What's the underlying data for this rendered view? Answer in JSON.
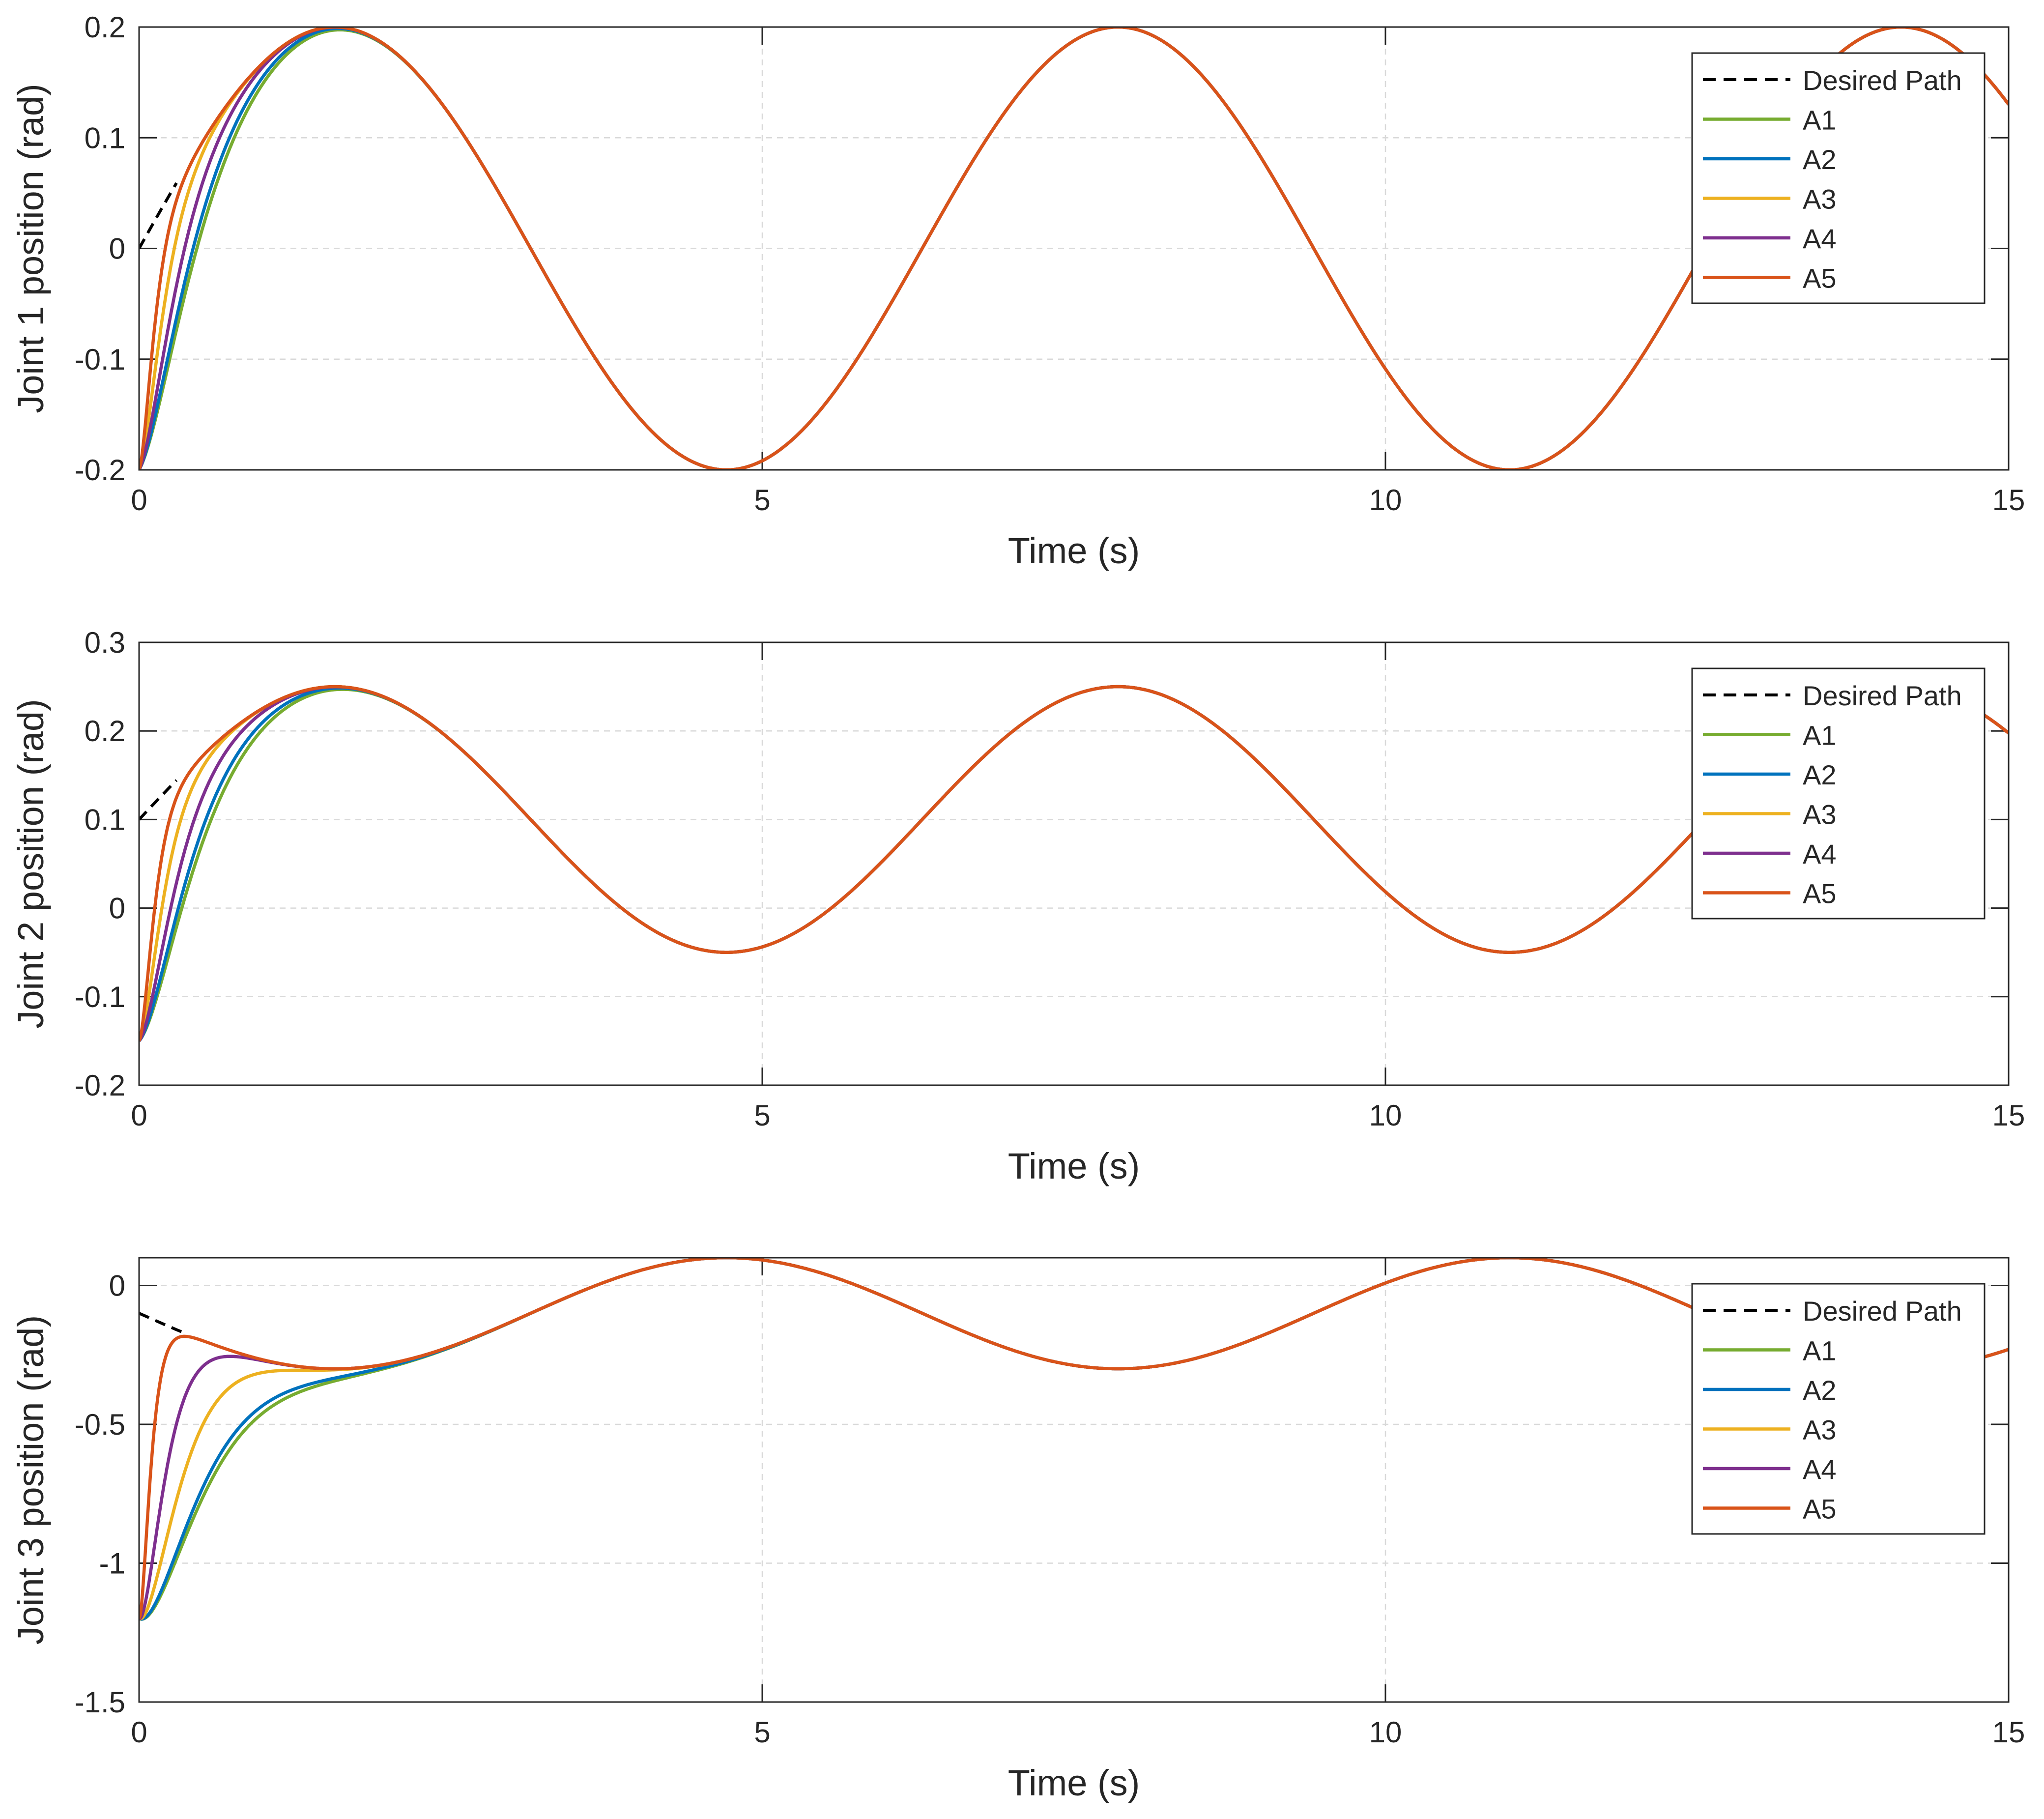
{
  "chart_data": [
    {
      "type": "line",
      "xlabel": "Time (s)",
      "ylabel": "Joint 1 position (rad)",
      "xlim": [
        0,
        15
      ],
      "ylim": [
        -0.2,
        0.2
      ],
      "xticks": [
        "0",
        "5",
        "10",
        "15"
      ],
      "yticks": [
        "-0.2",
        "-0.1",
        "0",
        "0.1",
        "0.2"
      ],
      "grid": true,
      "legend_position": "top-right",
      "desired": {
        "name": "Desired Path",
        "color": "#000000",
        "style": "dashed",
        "offset": 0.0,
        "amplitude": 0.2,
        "omega": 1.0,
        "phase": 0.0,
        "start": 0.0,
        "shown_until": 0.3
      },
      "series": [
        {
          "name": "A1",
          "color": "#77AC30",
          "start": -0.2,
          "rate": 4.0
        },
        {
          "name": "A2",
          "color": "#0072BD",
          "start": -0.2,
          "rate": 4.5
        },
        {
          "name": "A3",
          "color": "#EDB120",
          "start": -0.2,
          "rate": 9.0
        },
        {
          "name": "A4",
          "color": "#7E2F8E",
          "start": -0.2,
          "rate": 6.0
        },
        {
          "name": "A5",
          "color": "#D95319",
          "start": -0.2,
          "rate": 14.0
        }
      ]
    },
    {
      "type": "line",
      "xlabel": "Time (s)",
      "ylabel": "Joint 2 position (rad)",
      "xlim": [
        0,
        15
      ],
      "ylim": [
        -0.2,
        0.3
      ],
      "xticks": [
        "0",
        "5",
        "10",
        "15"
      ],
      "yticks": [
        "-0.2",
        "-0.1",
        "0",
        "0.1",
        "0.2",
        "0.3"
      ],
      "grid": true,
      "legend_position": "top-right",
      "desired": {
        "name": "Desired Path",
        "color": "#000000",
        "style": "dashed",
        "offset": 0.1,
        "amplitude": 0.15,
        "omega": 1.0,
        "phase": 0.0,
        "start": 0.1,
        "shown_until": 0.3
      },
      "series": [
        {
          "name": "A1",
          "color": "#77AC30",
          "start": -0.15,
          "rate": 4.0
        },
        {
          "name": "A2",
          "color": "#0072BD",
          "start": -0.15,
          "rate": 4.5
        },
        {
          "name": "A3",
          "color": "#EDB120",
          "start": -0.15,
          "rate": 9.0
        },
        {
          "name": "A4",
          "color": "#7E2F8E",
          "start": -0.15,
          "rate": 6.0
        },
        {
          "name": "A5",
          "color": "#D95319",
          "start": -0.15,
          "rate": 14.0
        }
      ]
    },
    {
      "type": "line",
      "xlabel": "Time (s)",
      "ylabel": "Joint 3 position (rad)",
      "xlim": [
        0,
        15
      ],
      "ylim": [
        -1.5,
        0.1
      ],
      "xticks": [
        "0",
        "5",
        "10",
        "15"
      ],
      "yticks": [
        "-1.5",
        "-1",
        "-0.5",
        "0"
      ],
      "grid": true,
      "legend_position": "top-right",
      "desired": {
        "name": "Desired Path",
        "color": "#000000",
        "style": "dashed",
        "offset": -0.1,
        "amplitude": 0.2,
        "omega": 1.0,
        "phase": 3.14159,
        "start": -0.1,
        "shown_until": 0.35
      },
      "series": [
        {
          "name": "A1",
          "color": "#77AC30",
          "start": -1.2,
          "rate": 3.2
        },
        {
          "name": "A2",
          "color": "#0072BD",
          "start": -1.2,
          "rate": 3.4
        },
        {
          "name": "A3",
          "color": "#EDB120",
          "start": -1.2,
          "rate": 5.0
        },
        {
          "name": "A4",
          "color": "#7E2F8E",
          "start": -1.2,
          "rate": 8.0
        },
        {
          "name": "A5",
          "color": "#D95319",
          "start": -1.2,
          "rate": 18.0
        }
      ]
    }
  ]
}
